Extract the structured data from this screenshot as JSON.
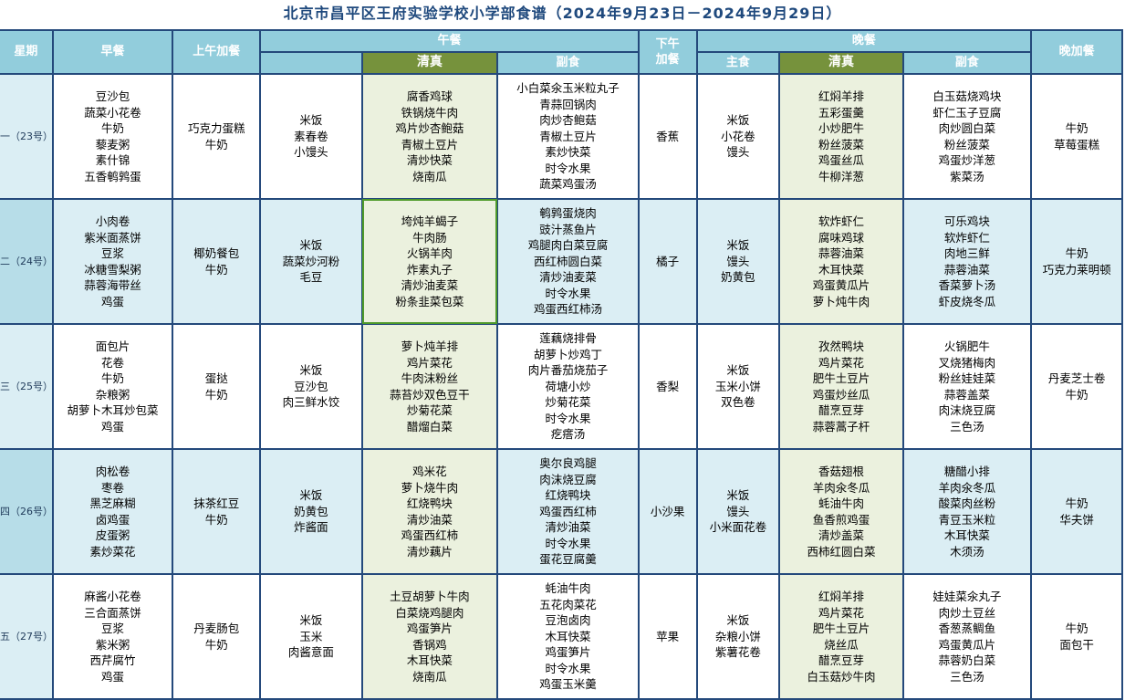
{
  "title": "北京市昌平区王府实验学校小学部食谱（2024年9月23日－2024年9月29日）",
  "headers": {
    "day": "星期",
    "breakfast": "早餐",
    "morning_snack": "上午加餐",
    "lunch": "午餐",
    "lunch_halal": "清真",
    "lunch_side": "副食",
    "afternoon_snack_1": "下午",
    "afternoon_snack_2": "加餐",
    "dinner": "晚餐",
    "dinner_staple": "主食",
    "dinner_halal": "清真",
    "dinner_side": "副食",
    "night_snack": "晚加餐"
  },
  "rows": [
    {
      "day": "一（23号）",
      "breakfast": [
        "豆沙包",
        "蔬菜小花卷",
        "牛奶",
        "藜麦粥",
        "素什锦",
        "五香鹌鹑蛋"
      ],
      "morning_snack": [
        "巧克力蛋糕",
        "牛奶"
      ],
      "lunch_staple": [
        "米饭",
        "素春卷",
        "小馒头"
      ],
      "lunch_halal": [
        "腐香鸡球",
        "铁锅烧牛肉",
        "鸡片炒杏鲍菇",
        "青椒土豆片",
        "清炒快菜",
        "烧南瓜"
      ],
      "lunch_side": [
        "小白菜氽玉米粒丸子",
        "青蒜回锅肉",
        "肉炒杏鲍菇",
        "青椒土豆片",
        "素炒快菜",
        "时令水果",
        "蔬菜鸡蛋汤"
      ],
      "afternoon_snack": [
        "香蕉"
      ],
      "dinner_staple": [
        "米饭",
        "小花卷",
        "馒头"
      ],
      "dinner_halal": [
        "红焖羊排",
        "五彩蛋羹",
        "小炒肥牛",
        "粉丝菠菜",
        "鸡蛋丝瓜",
        "牛柳洋葱"
      ],
      "dinner_side": [
        "白玉菇烧鸡块",
        "虾仁玉子豆腐",
        "肉炒圆白菜",
        "粉丝菠菜",
        "鸡蛋炒洋葱",
        "紫菜汤"
      ],
      "night_snack": [
        "牛奶",
        "草莓蛋糕"
      ]
    },
    {
      "day": "二（24号）",
      "breakfast": [
        "小肉卷",
        "紫米面蒸饼",
        "豆浆",
        "冰糖雪梨粥",
        "蒜蓉海带丝",
        "鸡蛋"
      ],
      "morning_snack": [
        "椰奶餐包",
        "牛奶"
      ],
      "lunch_staple": [
        "米饭",
        "蔬菜炒河粉",
        "毛豆"
      ],
      "lunch_halal": [
        "垮炖羊蝎子",
        "牛肉肠",
        "火锅羊肉",
        "炸素丸子",
        "清炒油麦菜",
        "粉条韭菜包菜"
      ],
      "lunch_side": [
        "鹌鹑蛋烧肉",
        "豉汁蒸鱼片",
        "鸡腿肉白菜豆腐",
        "西红柿圆白菜",
        "清炒油麦菜",
        "时令水果",
        "鸡蛋西红柿汤"
      ],
      "afternoon_snack": [
        "橘子"
      ],
      "dinner_staple": [
        "米饭",
        "馒头",
        "奶黄包"
      ],
      "dinner_halal": [
        "软炸虾仁",
        "腐味鸡球",
        "蒜蓉油菜",
        "木耳快菜",
        "鸡蛋黄瓜片",
        "萝卜炖牛肉"
      ],
      "dinner_side": [
        "可乐鸡块",
        "软炸虾仁",
        "肉地三鲜",
        "蒜蓉油菜",
        "香菜萝卜汤",
        "虾皮烧冬瓜"
      ],
      "night_snack": [
        "牛奶",
        "巧克力莱明顿"
      ]
    },
    {
      "day": "三（25号）",
      "breakfast": [
        "面包片",
        "花卷",
        "牛奶",
        "杂粮粥",
        "胡萝卜木耳炒包菜",
        "鸡蛋"
      ],
      "morning_snack": [
        "蛋挞",
        "牛奶"
      ],
      "lunch_staple": [
        "米饭",
        "豆沙包",
        "肉三鲜水饺"
      ],
      "lunch_halal": [
        "萝卜炖羊排",
        "鸡片菜花",
        "牛肉沫粉丝",
        "蒜苔炒双色豆干",
        "炒菊花菜",
        "醋熘白菜"
      ],
      "lunch_side": [
        "莲藕烧排骨",
        "胡萝卜炒鸡丁",
        "肉片番茄烧茄子",
        "荷塘小炒",
        "炒菊花菜",
        "时令水果",
        "疙瘩汤"
      ],
      "afternoon_snack": [
        "香梨"
      ],
      "dinner_staple": [
        "米饭",
        "玉米小饼",
        "双色卷"
      ],
      "dinner_halal": [
        "孜然鸭块",
        "鸡片菜花",
        "肥牛土豆片",
        "鸡蛋炒丝瓜",
        "醋烹豆芽",
        "蒜蓉蒿子杆"
      ],
      "dinner_side": [
        "火锅肥牛",
        "叉烧猪梅肉",
        "粉丝娃娃菜",
        "蒜蓉盖菜",
        "肉沫烧豆腐",
        "三色汤"
      ],
      "night_snack": [
        "丹麦芝士卷",
        "牛奶"
      ]
    },
    {
      "day": "四（26号）",
      "breakfast": [
        "肉松卷",
        "枣卷",
        "黑芝麻糊",
        "卤鸡蛋",
        "皮蛋粥",
        "素炒菜花"
      ],
      "morning_snack": [
        "抹茶红豆",
        "牛奶"
      ],
      "lunch_staple": [
        "米饭",
        "奶黄包",
        "炸酱面"
      ],
      "lunch_halal": [
        "鸡米花",
        "萝卜烧牛肉",
        "红烧鸭块",
        "清炒油菜",
        "鸡蛋西红柿",
        "清炒藕片"
      ],
      "lunch_side": [
        "奥尔良鸡腿",
        "肉沫烧豆腐",
        "红烧鸭块",
        "鸡蛋西红柿",
        "清炒油菜",
        "时令水果",
        "蛋花豆腐羹"
      ],
      "afternoon_snack": [
        "小沙果"
      ],
      "dinner_staple": [
        "米饭",
        "馒头",
        "小米面花卷"
      ],
      "dinner_halal": [
        "香菇翅根",
        "羊肉氽冬瓜",
        "蚝油牛肉",
        "鱼香煎鸡蛋",
        "清炒盖菜",
        "西柿红圆白菜"
      ],
      "dinner_side": [
        "糖醋小排",
        "羊肉氽冬瓜",
        "酸菜肉丝粉",
        "青豆玉米粒",
        "木耳快菜",
        "木须汤"
      ],
      "night_snack": [
        "牛奶",
        "华夫饼"
      ]
    },
    {
      "day": "五（27号）",
      "breakfast": [
        "麻酱小花卷",
        "三合面蒸饼",
        "豆浆",
        "紫米粥",
        "西芹腐竹",
        "鸡蛋"
      ],
      "morning_snack": [
        "丹麦肠包",
        "牛奶"
      ],
      "lunch_staple": [
        "米饭",
        "玉米",
        "肉酱意面"
      ],
      "lunch_halal": [
        "土豆胡萝卜牛肉",
        "白菜烧鸡腿肉",
        "鸡蛋笋片",
        "香锅鸡",
        "木耳快菜",
        "烧南瓜"
      ],
      "lunch_side": [
        "蚝油牛肉",
        "五花肉菜花",
        "豆泡卤肉",
        "木耳快菜",
        "鸡蛋笋片",
        "时令水果",
        "鸡蛋玉米羹"
      ],
      "afternoon_snack": [
        "苹果"
      ],
      "dinner_staple": [
        "米饭",
        "杂粮小饼",
        "紫薯花卷"
      ],
      "dinner_halal": [
        "红焖羊排",
        "鸡片菜花",
        "肥牛土豆片",
        "烧丝瓜",
        "醋烹豆芽",
        "白玉菇炒牛肉"
      ],
      "dinner_side": [
        "娃娃菜氽丸子",
        "肉炒土豆丝",
        "香葱蒸鲷鱼",
        "鸡蛋黄瓜片",
        "蒜蓉奶白菜",
        "三色汤"
      ],
      "night_snack": [
        "牛奶",
        "面包干"
      ]
    }
  ]
}
